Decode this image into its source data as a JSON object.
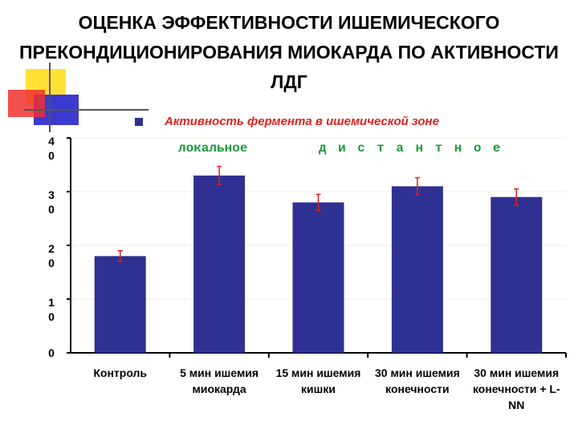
{
  "chart_data": {
    "type": "bar",
    "title": "ОЦЕНКА ЭФФЕКТИВНОСТИ ИШЕМИЧЕСКОГО ПРЕКОНДИЦИОНИРОВАНИЯ МИОКАРДА ПО АКТИВНОСТИ ЛДГ",
    "series": [
      {
        "name": "Активность фермента в ишемической зоне",
        "color": "#2e3192",
        "values": [
          18,
          33,
          28,
          31,
          29
        ],
        "errors": [
          1,
          1.7,
          1.5,
          1.6,
          1.5
        ]
      }
    ],
    "categories": [
      "Контроль",
      "5 мин ишемия миокарда",
      "15 мин ишемия кишки",
      "30 мин ишемия конечности",
      "30 мин ишемия конечности + L-NN"
    ],
    "annotations": [
      "локальное",
      "дистантное"
    ],
    "error_color": "#e0201b",
    "ylim": [
      0,
      40
    ],
    "yticks": [
      0,
      10,
      20,
      30,
      40
    ],
    "grid": true
  }
}
